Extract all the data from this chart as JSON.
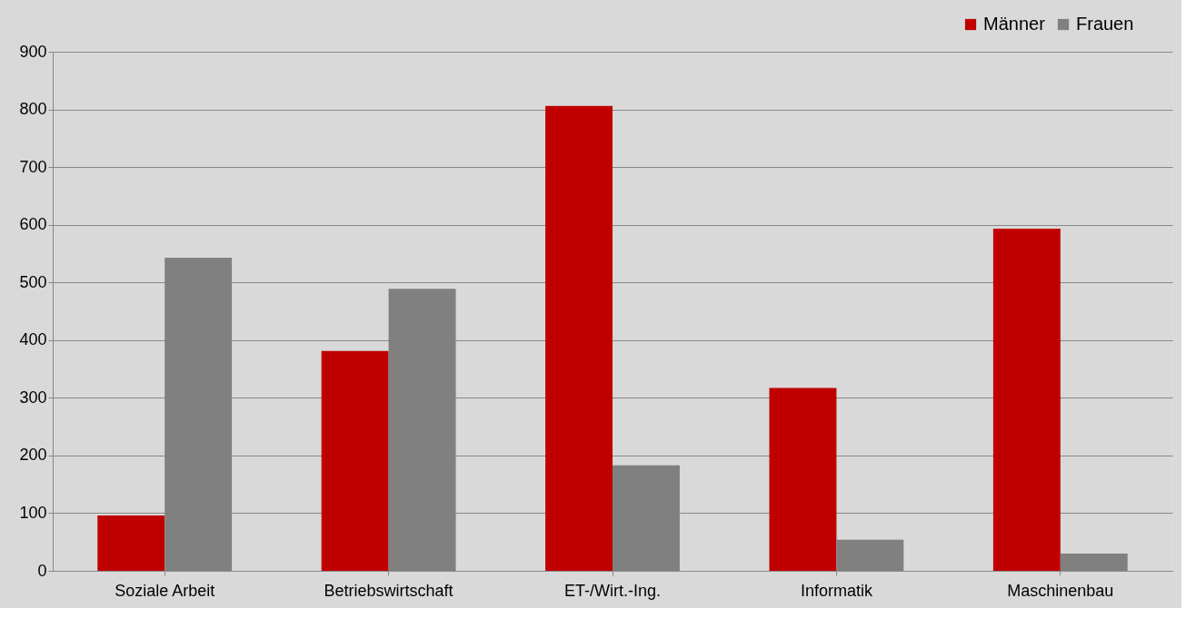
{
  "chart_data": {
    "type": "bar",
    "categories": [
      "Soziale Arbeit",
      "Betriebswirtschaft",
      "ET-/Wirt.-Ing.",
      "Informatik",
      "Maschinenbau"
    ],
    "series": [
      {
        "name": "Männer",
        "color": "#c00000",
        "values": [
          96,
          381,
          806,
          317,
          593
        ]
      },
      {
        "name": "Frauen",
        "color": "#808080",
        "values": [
          543,
          489,
          183,
          54,
          30
        ]
      }
    ],
    "ylim": [
      0,
      900
    ],
    "yticks": [
      0,
      100,
      200,
      300,
      400,
      500,
      600,
      700,
      800,
      900
    ],
    "grid": "y",
    "legend": "top right"
  }
}
